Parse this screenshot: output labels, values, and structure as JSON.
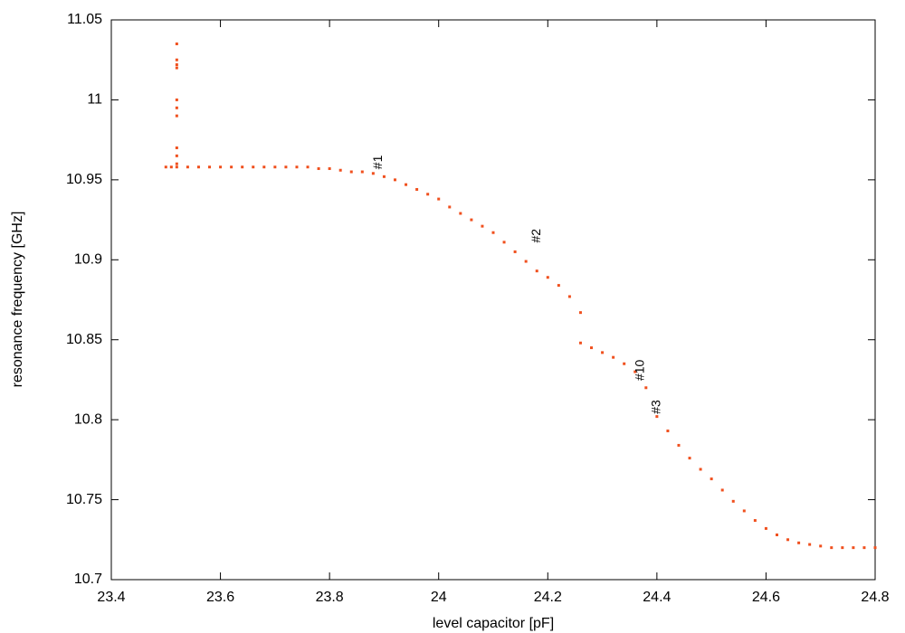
{
  "chart_data": {
    "type": "scatter",
    "x_label": "level capacitor [pF]",
    "y_label": "resonance frequency [GHz]",
    "xlim": [
      23.4,
      24.8
    ],
    "xticks": [
      23.4,
      23.6,
      23.8,
      24,
      24.2,
      24.4,
      24.6,
      24.8
    ],
    "ylim": [
      10.7,
      11.05
    ],
    "yticks": [
      10.7,
      10.75,
      10.8,
      10.85,
      10.9,
      10.95,
      11,
      11.05
    ],
    "series": [
      {
        "color": "#f0501e",
        "x": [
          23.5,
          23.51,
          23.52,
          23.52,
          23.52,
          23.52,
          23.52,
          23.52,
          23.52,
          23.52,
          23.52,
          23.52,
          23.52,
          23.54,
          23.56,
          23.58,
          23.6,
          23.62,
          23.64,
          23.66,
          23.68,
          23.7,
          23.72,
          23.74,
          23.76,
          23.78,
          23.8,
          23.82,
          23.84,
          23.86,
          23.88,
          23.9,
          23.92,
          23.94,
          23.96,
          23.98,
          24.0,
          24.02,
          24.04,
          24.06,
          24.08,
          24.1,
          24.12,
          24.14,
          24.16,
          24.18,
          24.2,
          24.22,
          24.24,
          24.26,
          24.26,
          24.28,
          24.3,
          24.32,
          24.34,
          24.36,
          24.38,
          24.4,
          24.42,
          24.44,
          24.46,
          24.48,
          24.5,
          24.52,
          24.54,
          24.56,
          24.58,
          24.6,
          24.62,
          24.64,
          24.66,
          24.68,
          24.7,
          24.72,
          24.74,
          24.76,
          24.78,
          24.8
        ],
        "y": [
          10.958,
          10.958,
          10.958,
          10.96,
          10.965,
          10.97,
          10.99,
          10.995,
          11.0,
          11.02,
          11.022,
          11.025,
          11.035,
          10.958,
          10.958,
          10.958,
          10.958,
          10.958,
          10.958,
          10.958,
          10.958,
          10.958,
          10.958,
          10.958,
          10.958,
          10.957,
          10.957,
          10.956,
          10.955,
          10.955,
          10.954,
          10.952,
          10.95,
          10.947,
          10.944,
          10.941,
          10.938,
          10.933,
          10.929,
          10.925,
          10.921,
          10.917,
          10.911,
          10.905,
          10.899,
          10.893,
          10.889,
          10.884,
          10.877,
          10.867,
          10.848,
          10.845,
          10.842,
          10.839,
          10.835,
          10.83,
          10.82,
          10.802,
          10.793,
          10.784,
          10.776,
          10.769,
          10.763,
          10.756,
          10.749,
          10.743,
          10.737,
          10.732,
          10.728,
          10.725,
          10.723,
          10.722,
          10.721,
          10.72,
          10.72,
          10.72,
          10.72,
          10.72
        ]
      }
    ],
    "annotations": [
      {
        "text": "#1",
        "x": 23.89,
        "y": 10.961
      },
      {
        "text": "#2",
        "x": 24.18,
        "y": 10.915
      },
      {
        "text": "#10",
        "x": 24.37,
        "y": 10.831
      },
      {
        "text": "#3",
        "x": 24.4,
        "y": 10.808
      }
    ]
  }
}
